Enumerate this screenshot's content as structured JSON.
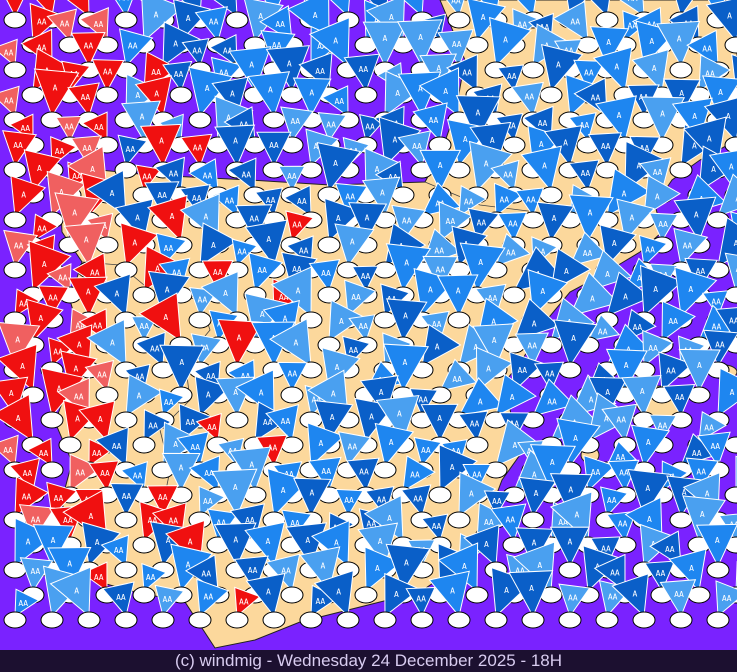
{
  "map": {
    "region": "Iberian Peninsula",
    "colors": {
      "sea": "#7a22ff",
      "land": "#fcd89c",
      "station_marker": "#ffffff",
      "wind_dark_blue": "#0a5fc8",
      "wind_blue": "#1e86f0",
      "wind_light_blue": "#4aa0f0",
      "wind_red": "#f01010",
      "wind_light_red": "#f06060"
    },
    "symbol_labels": [
      "A",
      "AA"
    ],
    "icons": [
      "station-ellipse",
      "wind-pennant",
      "water-drop-icon"
    ]
  },
  "footer": {
    "text": "(c) windmig - Wednesday 24 December 2025 - 18H"
  }
}
